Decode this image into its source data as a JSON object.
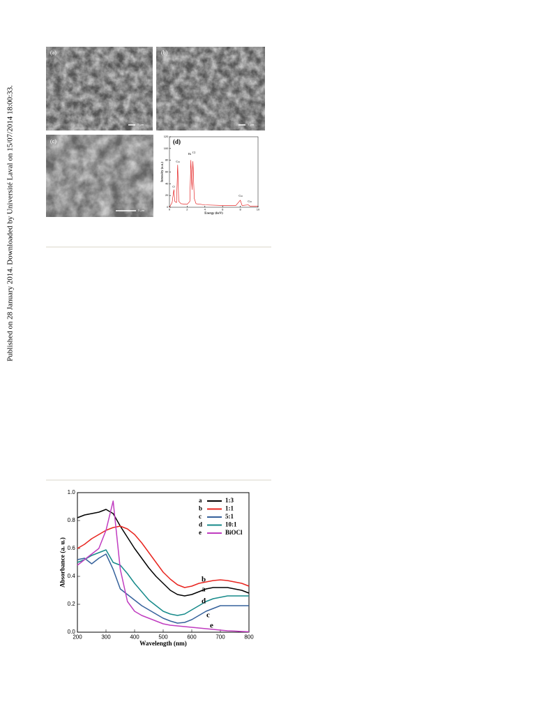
{
  "sidebar": "Published on 28 January 2014. Downloaded by Université Laval on 15/07/2014 18:00:33.",
  "sem_panels": [
    {
      "label": "(a)",
      "scale": "5 μm"
    },
    {
      "label": "(b)",
      "scale": "5 μm"
    },
    {
      "label": "(c)",
      "scale": "5 μm"
    }
  ],
  "chart_data": [
    {
      "type": "line",
      "title": "(d)",
      "x_label": "Energy (keV)",
      "y_label": "Intensity (a.u.)",
      "x": [
        0,
        0.3,
        0.5,
        0.6,
        0.8,
        0.93,
        1.05,
        1.3,
        2.0,
        2.3,
        2.42,
        2.55,
        2.65,
        2.8,
        3.0,
        4,
        6,
        7.5,
        8.0,
        8.2,
        8.9,
        9.1,
        10
      ],
      "series": [
        {
          "color": "#e00000",
          "values": [
            0,
            8,
            30,
            10,
            8,
            72,
            10,
            6,
            5,
            10,
            80,
            30,
            78,
            15,
            6,
            4,
            3,
            3,
            12,
            3,
            4,
            2,
            2
          ]
        }
      ],
      "annotations": [
        "Cu",
        "O",
        "Bi",
        "Cl",
        "Cu",
        "Cu"
      ],
      "xlim": [
        0,
        10
      ],
      "xticks": [
        0,
        2,
        4,
        6,
        8,
        10
      ],
      "ylim": [
        0,
        120
      ],
      "yticks": [
        0,
        20,
        40,
        60,
        80,
        100,
        120
      ]
    },
    {
      "type": "line",
      "x_label": "Wavelength (nm)",
      "y_label": "Absorbance (a. u.)",
      "x": [
        200,
        225,
        250,
        275,
        300,
        325,
        350,
        375,
        400,
        425,
        450,
        475,
        500,
        525,
        550,
        575,
        600,
        625,
        650,
        675,
        700,
        725,
        750,
        775,
        800
      ],
      "series": [
        {
          "label": "a",
          "name": "1:3",
          "color": "#000000",
          "values": [
            0.82,
            0.84,
            0.85,
            0.86,
            0.88,
            0.85,
            0.76,
            0.68,
            0.6,
            0.53,
            0.46,
            0.4,
            0.35,
            0.3,
            0.27,
            0.26,
            0.27,
            0.29,
            0.31,
            0.32,
            0.32,
            0.32,
            0.31,
            0.3,
            0.28
          ]
        },
        {
          "label": "b",
          "name": "1:1",
          "color": "#e8251f",
          "values": [
            0.6,
            0.63,
            0.67,
            0.7,
            0.73,
            0.75,
            0.76,
            0.74,
            0.7,
            0.64,
            0.57,
            0.5,
            0.43,
            0.38,
            0.34,
            0.32,
            0.33,
            0.35,
            0.36,
            0.37,
            0.375,
            0.37,
            0.36,
            0.35,
            0.33
          ]
        },
        {
          "label": "c",
          "name": "5:1",
          "color": "#35619b",
          "values": [
            0.52,
            0.53,
            0.49,
            0.53,
            0.56,
            0.45,
            0.31,
            0.27,
            0.23,
            0.19,
            0.16,
            0.13,
            0.1,
            0.08,
            0.065,
            0.07,
            0.09,
            0.12,
            0.15,
            0.17,
            0.19,
            0.19,
            0.19,
            0.19,
            0.19
          ]
        },
        {
          "label": "d",
          "name": "10:1",
          "color": "#168a8a",
          "values": [
            0.5,
            0.52,
            0.55,
            0.57,
            0.59,
            0.5,
            0.48,
            0.42,
            0.35,
            0.29,
            0.23,
            0.19,
            0.15,
            0.13,
            0.12,
            0.13,
            0.16,
            0.19,
            0.22,
            0.24,
            0.25,
            0.26,
            0.26,
            0.26,
            0.26
          ]
        },
        {
          "label": "e",
          "name": "BiOCl",
          "color": "#c03cc0",
          "values": [
            0.48,
            0.52,
            0.56,
            0.6,
            0.73,
            0.94,
            0.45,
            0.22,
            0.15,
            0.12,
            0.1,
            0.08,
            0.06,
            0.05,
            0.045,
            0.04,
            0.035,
            0.03,
            0.025,
            0.02,
            0.015,
            0.01,
            0.008,
            0.005,
            0.003
          ]
        }
      ],
      "xlim": [
        200,
        800
      ],
      "xticks": [
        200,
        300,
        400,
        500,
        600,
        700,
        800
      ],
      "ylim": [
        0,
        1
      ],
      "yticks": [
        {
          "value": 0,
          "label": "0.0"
        },
        0.2,
        0.4,
        0.6,
        0.8,
        {
          "value": 1,
          "label": "1.0"
        }
      ]
    }
  ]
}
